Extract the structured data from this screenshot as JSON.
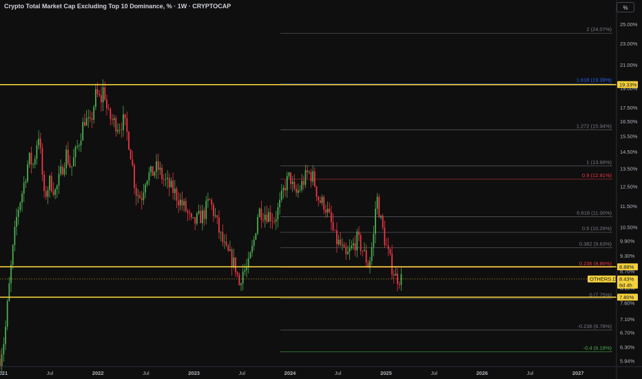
{
  "header": {
    "title": "Crypto Total Market Cap Excluding Top 10 Dominance, % · 1W · CRYPTOCAP",
    "scale_button": "%"
  },
  "colors": {
    "background": "#0f0f0f",
    "up": "#4caf50",
    "down": "#f23645",
    "level": "#f5d13a",
    "fib_gray": "#5d606b"
  },
  "chart_data": {
    "type": "candlestick",
    "title": "Crypto Total Market Cap Excluding Top 10 Dominance, % · 1W · CRYPTOCAP",
    "ylim": [
      5.8,
      26.0
    ],
    "y_scale": "log",
    "y_ticks": [
      {
        "v": 25.0,
        "t": "25.00%"
      },
      {
        "v": 23.0,
        "t": "23.00%"
      },
      {
        "v": 21.0,
        "t": "21.00%"
      },
      {
        "v": 19.0,
        "t": "19.00%"
      },
      {
        "v": 17.5,
        "t": "17.50%"
      },
      {
        "v": 16.5,
        "t": "16.50%"
      },
      {
        "v": 15.5,
        "t": "15.50%"
      },
      {
        "v": 14.5,
        "t": "14.50%"
      },
      {
        "v": 13.5,
        "t": "13.50%"
      },
      {
        "v": 12.5,
        "t": "12.50%"
      },
      {
        "v": 11.5,
        "t": "11.50%"
      },
      {
        "v": 10.5,
        "t": "10.50%"
      },
      {
        "v": 9.9,
        "t": "9.90%"
      },
      {
        "v": 9.3,
        "t": "9.30%"
      },
      {
        "v": 8.7,
        "t": "8.70%"
      },
      {
        "v": 8.1,
        "t": "8.10%"
      },
      {
        "v": 7.6,
        "t": "7.60%"
      },
      {
        "v": 7.1,
        "t": "7.10%"
      },
      {
        "v": 6.7,
        "t": "6.70%"
      },
      {
        "v": 6.3,
        "t": "6.30%"
      },
      {
        "v": 5.94,
        "t": "5.94%"
      }
    ],
    "x_ticks": [
      {
        "x": 2021.0,
        "t": "2021"
      },
      {
        "x": 2021.5,
        "t": "Jul"
      },
      {
        "x": 2022.0,
        "t": "2022"
      },
      {
        "x": 2022.5,
        "t": "Jul"
      },
      {
        "x": 2023.0,
        "t": "2023"
      },
      {
        "x": 2023.5,
        "t": "Jul"
      },
      {
        "x": 2024.0,
        "t": "2024"
      },
      {
        "x": 2024.5,
        "t": "Jul"
      },
      {
        "x": 2025.0,
        "t": "2025"
      },
      {
        "x": 2025.5,
        "t": "Jul"
      },
      {
        "x": 2026.0,
        "t": "2026"
      },
      {
        "x": 2026.5,
        "t": "Jul"
      },
      {
        "x": 2027.0,
        "t": "2027"
      }
    ],
    "xlim": [
      2020.98,
      2027.4
    ],
    "price_path": [
      [
        2020.98,
        6.0
      ],
      [
        2021.03,
        6.6
      ],
      [
        2021.08,
        8.3
      ],
      [
        2021.16,
        11.2
      ],
      [
        2021.22,
        12.4
      ],
      [
        2021.28,
        14.1
      ],
      [
        2021.33,
        13.7
      ],
      [
        2021.38,
        15.8
      ],
      [
        2021.44,
        11.9
      ],
      [
        2021.5,
        12.8
      ],
      [
        2021.56,
        12.2
      ],
      [
        2021.62,
        13.4
      ],
      [
        2021.67,
        14.4
      ],
      [
        2021.72,
        13.5
      ],
      [
        2021.8,
        15.1
      ],
      [
        2021.86,
        16.7
      ],
      [
        2021.92,
        16.2
      ],
      [
        2021.98,
        18.6
      ],
      [
        2022.03,
        18.0
      ],
      [
        2022.06,
        19.2
      ],
      [
        2022.1,
        17.0
      ],
      [
        2022.16,
        16.5
      ],
      [
        2022.22,
        16.2
      ],
      [
        2022.27,
        16.6
      ],
      [
        2022.33,
        14.9
      ],
      [
        2022.39,
        12.3
      ],
      [
        2022.45,
        11.9
      ],
      [
        2022.5,
        13.1
      ],
      [
        2022.56,
        13.2
      ],
      [
        2022.62,
        13.6
      ],
      [
        2022.67,
        13.0
      ],
      [
        2022.73,
        12.6
      ],
      [
        2022.8,
        12.2
      ],
      [
        2022.86,
        11.7
      ],
      [
        2022.92,
        11.3
      ],
      [
        2022.98,
        10.6
      ],
      [
        2023.04,
        10.9
      ],
      [
        2023.1,
        11.1
      ],
      [
        2023.16,
        11.8
      ],
      [
        2023.22,
        11.0
      ],
      [
        2023.27,
        10.2
      ],
      [
        2023.33,
        9.5
      ],
      [
        2023.39,
        9.2
      ],
      [
        2023.44,
        8.8
      ],
      [
        2023.47,
        8.2
      ],
      [
        2023.5,
        8.7
      ],
      [
        2023.56,
        8.8
      ],
      [
        2023.62,
        9.8
      ],
      [
        2023.67,
        11.3
      ],
      [
        2023.72,
        11.2
      ],
      [
        2023.78,
        11.1
      ],
      [
        2023.84,
        10.9
      ],
      [
        2023.89,
        11.5
      ],
      [
        2023.95,
        12.6
      ],
      [
        2024.0,
        13.1
      ],
      [
        2024.05,
        12.0
      ],
      [
        2024.1,
        12.4
      ],
      [
        2024.14,
        12.8
      ],
      [
        2024.19,
        13.3
      ],
      [
        2024.24,
        13.0
      ],
      [
        2024.3,
        11.8
      ],
      [
        2024.36,
        11.6
      ],
      [
        2024.42,
        10.8
      ],
      [
        2024.47,
        10.0
      ],
      [
        2024.53,
        9.7
      ],
      [
        2024.58,
        9.2
      ],
      [
        2024.64,
        9.6
      ],
      [
        2024.7,
        10.0
      ],
      [
        2024.75,
        9.6
      ],
      [
        2024.82,
        8.9
      ],
      [
        2024.87,
        10.1
      ],
      [
        2024.9,
        12.1
      ],
      [
        2024.95,
        10.7
      ],
      [
        2025.0,
        9.7
      ],
      [
        2025.05,
        9.0
      ],
      [
        2025.1,
        8.5
      ],
      [
        2025.16,
        8.45
      ]
    ],
    "fib_levels": [
      {
        "label": "2 (24.07%)",
        "value": 24.07,
        "color": "#787b86"
      },
      {
        "label": "1.618 (19.39%)",
        "value": 19.39,
        "color": "#2962ff"
      },
      {
        "label": "1.272 (15.94%)",
        "value": 15.94,
        "color": "#787b86"
      },
      {
        "label": "1 (13.66%)",
        "value": 13.66,
        "color": "#787b86"
      },
      {
        "label": "0.9 (12.91%)",
        "value": 12.91,
        "color": "#f23645"
      },
      {
        "label": "0.618 (11.00%)",
        "value": 11.0,
        "color": "#787b86"
      },
      {
        "label": "0.5 (10.29%)",
        "value": 10.29,
        "color": "#787b86"
      },
      {
        "label": "0.382 (9.63%)",
        "value": 9.63,
        "color": "#787b86"
      },
      {
        "label": "0.236 (8.86%)",
        "value": 8.86,
        "color": "#f23645"
      },
      {
        "label": "0 (7.75%)",
        "value": 7.75,
        "color": "#787b86"
      },
      {
        "label": "-0.236 (6.78%)",
        "value": 6.78,
        "color": "#787b86"
      },
      {
        "label": "-0.4 (6.18%)",
        "value": 6.18,
        "color": "#4caf50"
      }
    ],
    "fib_x_start": 2023.9,
    "horizontal_levels": [
      {
        "value": 19.33,
        "label": "19.33%"
      },
      {
        "value": 8.88,
        "label": "8.88%"
      },
      {
        "value": 7.8,
        "label": "7.80%"
      }
    ],
    "current": {
      "value": 8.43,
      "symbol": "OTHERS.D",
      "price_label": "8.43%",
      "countdown": "6d 4h"
    }
  }
}
